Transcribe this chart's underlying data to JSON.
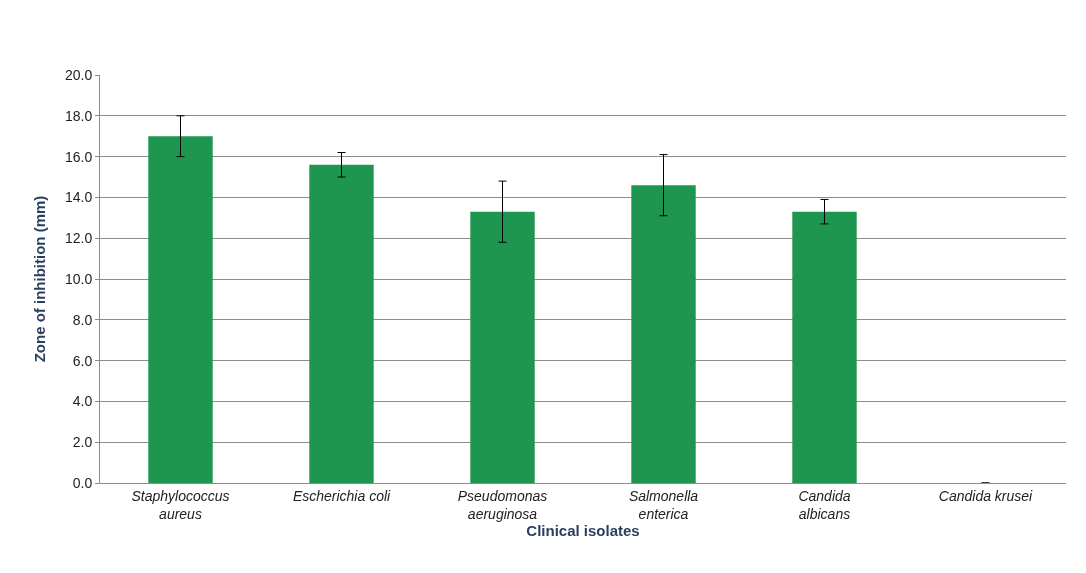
{
  "chart_data": {
    "type": "bar",
    "xlabel": "Clinical isolates",
    "ylabel": "Zone of inhibition (mm)",
    "categories": [
      "Staphylococcus\naureus",
      "Escherichia coli",
      "Pseudomonas\naeruginosa",
      "Salmonella\nenterica",
      "Candida\nalbicans",
      "Candida krusei"
    ],
    "values": [
      17.0,
      15.6,
      13.3,
      14.6,
      13.3,
      0
    ],
    "errors": [
      1.0,
      0.6,
      1.5,
      1.5,
      0.6,
      null
    ],
    "color": "#1e9650",
    "ylim": [
      0,
      20
    ],
    "yticks": [
      {
        "value": 0,
        "label": "0.0"
      },
      {
        "value": 2,
        "label": "2.0"
      },
      {
        "value": 4,
        "label": "4.0"
      },
      {
        "value": 6,
        "label": "6.0"
      },
      {
        "value": 8,
        "label": "8.0"
      },
      {
        "value": 10,
        "label": "10.0"
      },
      {
        "value": 12,
        "label": "12.0"
      },
      {
        "value": 14,
        "label": "14.0"
      },
      {
        "value": 16,
        "label": "16.0"
      },
      {
        "value": 18,
        "label": "18.0"
      },
      {
        "value": 20,
        "label": "20.0"
      }
    ],
    "grid": "y",
    "legend": false
  }
}
